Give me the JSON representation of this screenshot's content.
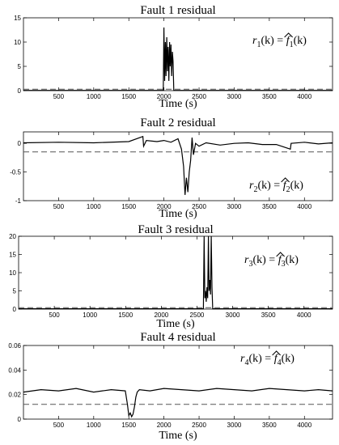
{
  "chart_data": [
    {
      "type": "line",
      "title": "Fault 1 residual",
      "xlabel": "Time (s)",
      "ylabel": "",
      "annotation": {
        "lhs_var": "r",
        "lhs_sub": "1",
        "arg": "(k) = ",
        "rhs_var": "f",
        "rhs_sub": "1",
        "rhs_arg": "(k)"
      },
      "xlim": [
        0,
        4400
      ],
      "ylim": [
        0,
        15
      ],
      "xticks": [
        500,
        1000,
        1500,
        2000,
        2500,
        3000,
        3500,
        4000
      ],
      "yticks": [
        0,
        5,
        10,
        15
      ],
      "grid": false,
      "threshold": 0.3,
      "series": [
        {
          "x": [
            0,
            1990,
            2000,
            2010,
            2020,
            2030,
            2040,
            2050,
            2060,
            2070,
            2080,
            2090,
            2100,
            2110,
            2120,
            2130,
            2140,
            4400
          ],
          "y": [
            0.05,
            0.05,
            13,
            2,
            10,
            3,
            11,
            4,
            9,
            2,
            10,
            5,
            9.5,
            3,
            8,
            6,
            0.05,
            0.05
          ]
        }
      ]
    },
    {
      "type": "line",
      "title": "Fault 2 residual",
      "xlabel": "Time (s)",
      "ylabel": "",
      "annotation": {
        "lhs_var": "r",
        "lhs_sub": "2",
        "arg": "(k) = ",
        "rhs_var": "f",
        "rhs_sub": "2",
        "rhs_arg": "(k)"
      },
      "xlim": [
        0,
        4400
      ],
      "ylim": [
        -1,
        0.2
      ],
      "xticks": [
        500,
        1000,
        1500,
        2000,
        2500,
        3000,
        3500,
        4000
      ],
      "yticks": [
        -1,
        -0.5,
        0
      ],
      "grid": false,
      "threshold": -0.15,
      "series": [
        {
          "x": [
            0,
            500,
            1000,
            1500,
            1700,
            1710,
            1750,
            1900,
            2000,
            2100,
            2200,
            2250,
            2280,
            2300,
            2320,
            2340,
            2360,
            2380,
            2400,
            2420,
            2450,
            2500,
            2600,
            2800,
            3000,
            3200,
            3400,
            3600,
            3800,
            3810,
            4000,
            4200,
            4400
          ],
          "y": [
            0.01,
            0.02,
            0.01,
            0.03,
            0.12,
            -0.05,
            0.05,
            0.03,
            0.05,
            0.02,
            0.08,
            -0.1,
            -0.4,
            -0.9,
            -0.6,
            -0.85,
            -0.5,
            -0.3,
            0.1,
            -0.2,
            0.0,
            -0.05,
            0.01,
            -0.03,
            0.0,
            0.01,
            -0.02,
            -0.02,
            -0.1,
            0.0,
            0.02,
            -0.01,
            0.01
          ]
        }
      ]
    },
    {
      "type": "line",
      "title": "Fault 3 residual",
      "xlabel": "Time (s)",
      "ylabel": "",
      "annotation": {
        "lhs_var": "r",
        "lhs_sub": "3",
        "arg": "(k) = ",
        "rhs_var": "f",
        "rhs_sub": "3",
        "rhs_arg": "(k)"
      },
      "xlim": [
        0,
        4400
      ],
      "ylim": [
        0,
        20
      ],
      "xticks": [
        500,
        1000,
        1500,
        2000,
        2500,
        3000,
        3500,
        4000
      ],
      "yticks": [
        0,
        5,
        10,
        15,
        20
      ],
      "grid": false,
      "threshold": 0.4,
      "series": [
        {
          "x": [
            0,
            2590,
            2600,
            2610,
            2620,
            2630,
            2640,
            2650,
            2660,
            2670,
            2680,
            2690,
            2700,
            2710,
            2720,
            4400
          ],
          "y": [
            0.1,
            0.1,
            20,
            3,
            5,
            2,
            6,
            3,
            20,
            5,
            8,
            4,
            20,
            6,
            0.1,
            0.1
          ]
        }
      ]
    },
    {
      "type": "line",
      "title": "Fault 4 residual",
      "xlabel": "Time (s)",
      "ylabel": "",
      "annotation": {
        "lhs_var": "r",
        "lhs_sub": "4",
        "arg": "(k) = ",
        "rhs_var": "f",
        "rhs_sub": "4",
        "rhs_arg": "(k)"
      },
      "xlim": [
        0,
        4400
      ],
      "ylim": [
        0,
        0.06
      ],
      "xticks": [
        500,
        1000,
        1500,
        2000,
        2500,
        3000,
        3500,
        4000
      ],
      "yticks": [
        0,
        0.02,
        0.04,
        0.06
      ],
      "grid": false,
      "threshold": 0.012,
      "series": [
        {
          "x": [
            0,
            250,
            500,
            750,
            1000,
            1250,
            1450,
            1480,
            1500,
            1520,
            1540,
            1560,
            1580,
            1600,
            1620,
            1650,
            1800,
            2000,
            2250,
            2500,
            2750,
            3000,
            3250,
            3500,
            3750,
            4000,
            4200,
            4400
          ],
          "y": [
            0.022,
            0.024,
            0.023,
            0.025,
            0.022,
            0.024,
            0.023,
            0.012,
            0.003,
            0.005,
            0.002,
            0.004,
            0.01,
            0.018,
            0.022,
            0.024,
            0.023,
            0.025,
            0.024,
            0.023,
            0.025,
            0.024,
            0.023,
            0.025,
            0.024,
            0.023,
            0.024,
            0.023
          ]
        }
      ]
    }
  ]
}
